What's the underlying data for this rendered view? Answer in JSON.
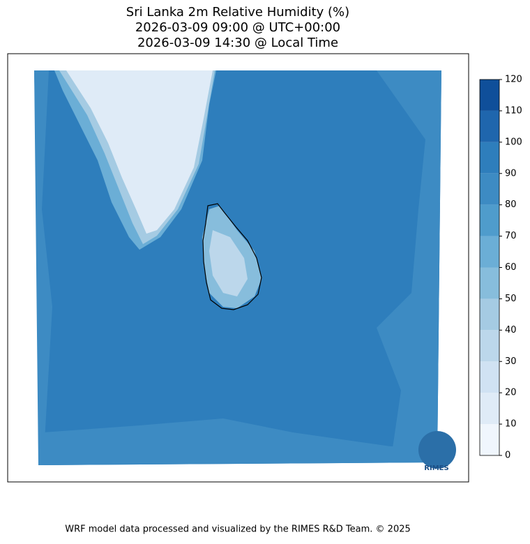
{
  "title": [
    "Sri Lanka 2m Relative Humidity (%)",
    "2026-03-09 09:00 @ UTC+00:00",
    "2026-03-09 14:30 @ Local Time"
  ],
  "colorbar": {
    "ticks": [
      0,
      10,
      20,
      30,
      40,
      50,
      60,
      70,
      80,
      90,
      100,
      110,
      120
    ],
    "colors": [
      "#f0f6fd",
      "#dfebf7",
      "#d0e2f3",
      "#bcd7eb",
      "#a5cbe3",
      "#87bddc",
      "#6baed6",
      "#4f9ccc",
      "#3d8bc3",
      "#2e7ebc",
      "#1f66ad",
      "#0f4f9a",
      "#08306b"
    ]
  },
  "logo": "RIMES",
  "footer": "WRF model data processed and visualized by the RIMES R&D Team. © 2025"
}
